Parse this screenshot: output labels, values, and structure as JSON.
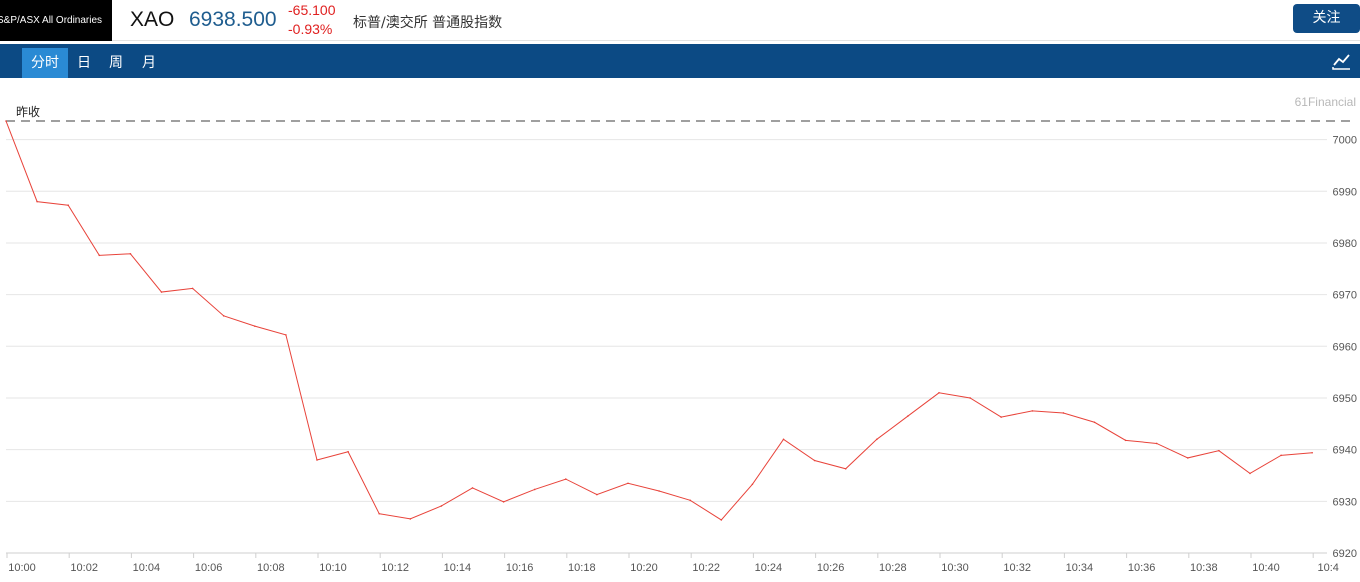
{
  "header": {
    "logo_text": "S&P/ASX All Ordinaries",
    "symbol": "XAO",
    "price": "6938.500",
    "change": "-65.100",
    "change_pct": "-0.93%",
    "name": "标普/澳交所 普通股指数",
    "follow_label": "关注"
  },
  "tabs": [
    {
      "label": "分时",
      "active": true
    },
    {
      "label": "日",
      "active": false
    },
    {
      "label": "周",
      "active": false
    },
    {
      "label": "月",
      "active": false
    }
  ],
  "toolbar": {
    "chart_icon": "line-chart-icon"
  },
  "chart_data": {
    "type": "line",
    "watermark": "61Financial",
    "prev_close_label": "昨收",
    "prev_close": 7003.6,
    "ylim": [
      6920,
      7003.6
    ],
    "y_ticks": [
      6920,
      6930,
      6940,
      6950,
      6960,
      6970,
      6980,
      6990,
      7000
    ],
    "x_ticks": [
      "10:00",
      "10:02",
      "10:04",
      "10:06",
      "10:08",
      "10:10",
      "10:12",
      "10:14",
      "10:16",
      "10:18",
      "10:20",
      "10:22",
      "10:24",
      "10:26",
      "10:28",
      "10:30",
      "10:32",
      "10:34",
      "10:36",
      "10:38",
      "10:40",
      "10:4"
    ],
    "line_color": "#e8433a",
    "series": [
      {
        "x_minutes": [
          0,
          1,
          2,
          3,
          4,
          5,
          6,
          7,
          8,
          9,
          10,
          11,
          12,
          13,
          14,
          15,
          16,
          17,
          18,
          19,
          20,
          21,
          22,
          23,
          24,
          25,
          26,
          27,
          28,
          29,
          30,
          31,
          32,
          33,
          34,
          35,
          36,
          37,
          38,
          39,
          40,
          41,
          42
        ],
        "values": [
          7003.6,
          6988.0,
          6987.3,
          6977.6,
          6977.9,
          6970.5,
          6971.2,
          6965.9,
          6963.9,
          6962.2,
          6938.0,
          6939.6,
          6927.6,
          6926.6,
          6929.1,
          6932.6,
          6929.9,
          6932.3,
          6934.3,
          6931.3,
          6933.5,
          6932.0,
          6930.2,
          6926.4,
          6933.3,
          6942.0,
          6937.9,
          6936.3,
          6942.0,
          6946.5,
          6951.0,
          6950.0,
          6946.3,
          6947.5,
          6947.1,
          6945.3,
          6941.8,
          6941.2,
          6938.4,
          6939.8,
          6935.4,
          6938.9,
          6939.4
        ]
      }
    ]
  }
}
